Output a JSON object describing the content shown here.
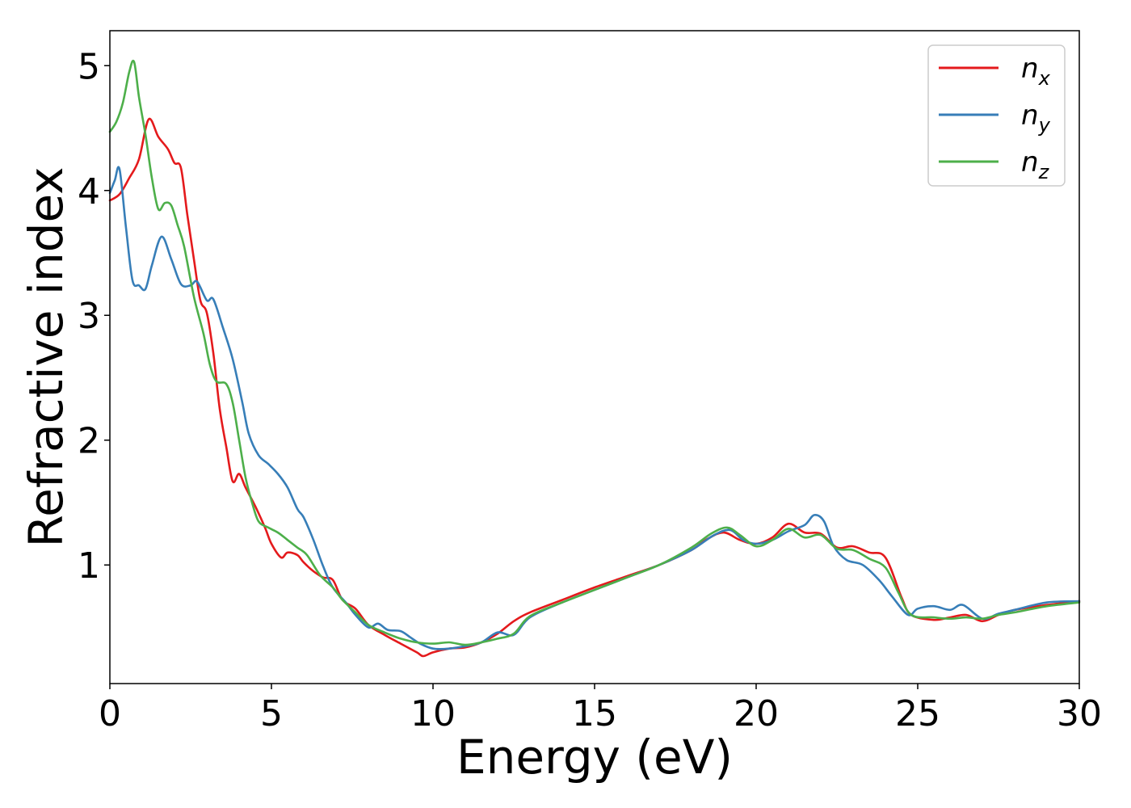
{
  "chart_data": {
    "type": "line",
    "title": "",
    "xlabel": "Energy (eV)",
    "ylabel": "Refractive index",
    "xlim": [
      0,
      30
    ],
    "ylim": [
      0.05,
      5.28
    ],
    "x_ticks": [
      0,
      5,
      10,
      15,
      20,
      25,
      30
    ],
    "y_ticks": [
      1,
      2,
      3,
      4,
      5
    ],
    "x_tick_labels": [
      "0",
      "5",
      "10",
      "15",
      "20",
      "25",
      "30"
    ],
    "y_tick_labels": [
      "1",
      "2",
      "3",
      "4",
      "5"
    ],
    "grid": false,
    "legend_position": "top-right",
    "series": [
      {
        "name": "n",
        "subscript": "x",
        "color": "#e41a1c",
        "points": [
          [
            0,
            3.92
          ],
          [
            0.3,
            3.97
          ],
          [
            0.6,
            4.1
          ],
          [
            0.9,
            4.25
          ],
          [
            1.2,
            4.57
          ],
          [
            1.5,
            4.43
          ],
          [
            1.8,
            4.33
          ],
          [
            2.0,
            4.22
          ],
          [
            2.2,
            4.18
          ],
          [
            2.4,
            3.8
          ],
          [
            2.6,
            3.45
          ],
          [
            2.8,
            3.12
          ],
          [
            3.0,
            3.02
          ],
          [
            3.2,
            2.7
          ],
          [
            3.4,
            2.25
          ],
          [
            3.6,
            1.95
          ],
          [
            3.8,
            1.67
          ],
          [
            4.0,
            1.73
          ],
          [
            4.2,
            1.62
          ],
          [
            4.5,
            1.47
          ],
          [
            4.8,
            1.3
          ],
          [
            5.0,
            1.17
          ],
          [
            5.3,
            1.06
          ],
          [
            5.5,
            1.1
          ],
          [
            5.8,
            1.08
          ],
          [
            6.0,
            1.02
          ],
          [
            6.3,
            0.95
          ],
          [
            6.6,
            0.9
          ],
          [
            6.9,
            0.88
          ],
          [
            7.2,
            0.72
          ],
          [
            7.6,
            0.65
          ],
          [
            8.0,
            0.52
          ],
          [
            8.5,
            0.44
          ],
          [
            9.0,
            0.37
          ],
          [
            9.5,
            0.3
          ],
          [
            9.7,
            0.27
          ],
          [
            10.0,
            0.3
          ],
          [
            10.5,
            0.33
          ],
          [
            11.0,
            0.34
          ],
          [
            11.5,
            0.38
          ],
          [
            12.0,
            0.45
          ],
          [
            12.5,
            0.55
          ],
          [
            13.0,
            0.62
          ],
          [
            14.0,
            0.72
          ],
          [
            15.0,
            0.82
          ],
          [
            16.0,
            0.91
          ],
          [
            17.0,
            1.0
          ],
          [
            18.0,
            1.12
          ],
          [
            18.5,
            1.21
          ],
          [
            19.0,
            1.26
          ],
          [
            19.5,
            1.2
          ],
          [
            20.0,
            1.17
          ],
          [
            20.5,
            1.22
          ],
          [
            21.0,
            1.33
          ],
          [
            21.5,
            1.26
          ],
          [
            22.0,
            1.25
          ],
          [
            22.5,
            1.14
          ],
          [
            23.0,
            1.15
          ],
          [
            23.5,
            1.1
          ],
          [
            24.0,
            1.06
          ],
          [
            24.5,
            0.74
          ],
          [
            24.8,
            0.6
          ],
          [
            25.5,
            0.56
          ],
          [
            26.0,
            0.58
          ],
          [
            26.5,
            0.6
          ],
          [
            27.0,
            0.55
          ],
          [
            27.5,
            0.6
          ],
          [
            28.0,
            0.64
          ],
          [
            29.0,
            0.68
          ],
          [
            30.0,
            0.71
          ]
        ]
      },
      {
        "name": "n",
        "subscript": "y",
        "color": "#377eb8",
        "points": [
          [
            0,
            3.98
          ],
          [
            0.15,
            4.08
          ],
          [
            0.3,
            4.17
          ],
          [
            0.5,
            3.7
          ],
          [
            0.7,
            3.28
          ],
          [
            0.9,
            3.24
          ],
          [
            1.1,
            3.21
          ],
          [
            1.3,
            3.4
          ],
          [
            1.6,
            3.63
          ],
          [
            1.9,
            3.45
          ],
          [
            2.2,
            3.25
          ],
          [
            2.5,
            3.24
          ],
          [
            2.7,
            3.27
          ],
          [
            3.0,
            3.12
          ],
          [
            3.2,
            3.13
          ],
          [
            3.5,
            2.9
          ],
          [
            3.8,
            2.65
          ],
          [
            4.1,
            2.3
          ],
          [
            4.3,
            2.05
          ],
          [
            4.6,
            1.88
          ],
          [
            4.9,
            1.81
          ],
          [
            5.2,
            1.73
          ],
          [
            5.5,
            1.62
          ],
          [
            5.8,
            1.45
          ],
          [
            6.0,
            1.38
          ],
          [
            6.3,
            1.2
          ],
          [
            6.6,
            0.99
          ],
          [
            6.9,
            0.82
          ],
          [
            7.3,
            0.7
          ],
          [
            7.6,
            0.6
          ],
          [
            8.0,
            0.5
          ],
          [
            8.3,
            0.53
          ],
          [
            8.6,
            0.48
          ],
          [
            9.0,
            0.47
          ],
          [
            9.3,
            0.42
          ],
          [
            9.6,
            0.37
          ],
          [
            10.0,
            0.33
          ],
          [
            10.5,
            0.33
          ],
          [
            11.0,
            0.35
          ],
          [
            11.5,
            0.38
          ],
          [
            12.0,
            0.46
          ],
          [
            12.5,
            0.44
          ],
          [
            13.0,
            0.58
          ],
          [
            14.0,
            0.7
          ],
          [
            15.0,
            0.8
          ],
          [
            16.0,
            0.9
          ],
          [
            17.0,
            1.0
          ],
          [
            18.0,
            1.12
          ],
          [
            18.7,
            1.24
          ],
          [
            19.2,
            1.28
          ],
          [
            19.6,
            1.2
          ],
          [
            20.0,
            1.17
          ],
          [
            20.5,
            1.2
          ],
          [
            21.0,
            1.27
          ],
          [
            21.5,
            1.32
          ],
          [
            21.8,
            1.4
          ],
          [
            22.1,
            1.35
          ],
          [
            22.4,
            1.15
          ],
          [
            22.8,
            1.04
          ],
          [
            23.3,
            1.0
          ],
          [
            23.8,
            0.88
          ],
          [
            24.2,
            0.75
          ],
          [
            24.7,
            0.6
          ],
          [
            25.0,
            0.65
          ],
          [
            25.5,
            0.67
          ],
          [
            26.0,
            0.64
          ],
          [
            26.4,
            0.68
          ],
          [
            27.0,
            0.57
          ],
          [
            27.5,
            0.61
          ],
          [
            28.0,
            0.64
          ],
          [
            29.0,
            0.7
          ],
          [
            30.0,
            0.71
          ]
        ]
      },
      {
        "name": "n",
        "subscript": "z",
        "color": "#4daf4a",
        "points": [
          [
            0,
            4.47
          ],
          [
            0.2,
            4.55
          ],
          [
            0.4,
            4.7
          ],
          [
            0.6,
            4.95
          ],
          [
            0.75,
            5.03
          ],
          [
            0.9,
            4.75
          ],
          [
            1.1,
            4.45
          ],
          [
            1.3,
            4.1
          ],
          [
            1.5,
            3.85
          ],
          [
            1.7,
            3.9
          ],
          [
            1.9,
            3.88
          ],
          [
            2.1,
            3.72
          ],
          [
            2.3,
            3.55
          ],
          [
            2.6,
            3.15
          ],
          [
            2.9,
            2.85
          ],
          [
            3.1,
            2.6
          ],
          [
            3.3,
            2.47
          ],
          [
            3.6,
            2.45
          ],
          [
            3.8,
            2.3
          ],
          [
            4.0,
            2.0
          ],
          [
            4.2,
            1.7
          ],
          [
            4.4,
            1.5
          ],
          [
            4.6,
            1.35
          ],
          [
            4.9,
            1.3
          ],
          [
            5.2,
            1.26
          ],
          [
            5.5,
            1.2
          ],
          [
            5.8,
            1.14
          ],
          [
            6.1,
            1.08
          ],
          [
            6.5,
            0.92
          ],
          [
            6.9,
            0.82
          ],
          [
            7.2,
            0.72
          ],
          [
            7.6,
            0.62
          ],
          [
            8.0,
            0.52
          ],
          [
            8.5,
            0.46
          ],
          [
            9.0,
            0.41
          ],
          [
            9.5,
            0.38
          ],
          [
            10.0,
            0.37
          ],
          [
            10.5,
            0.38
          ],
          [
            11.0,
            0.36
          ],
          [
            11.5,
            0.38
          ],
          [
            12.0,
            0.41
          ],
          [
            12.5,
            0.45
          ],
          [
            13.0,
            0.59
          ],
          [
            14.0,
            0.7
          ],
          [
            15.0,
            0.8
          ],
          [
            16.0,
            0.9
          ],
          [
            17.0,
            1.0
          ],
          [
            18.0,
            1.14
          ],
          [
            18.6,
            1.25
          ],
          [
            19.1,
            1.3
          ],
          [
            19.5,
            1.24
          ],
          [
            20.0,
            1.15
          ],
          [
            20.5,
            1.2
          ],
          [
            21.0,
            1.29
          ],
          [
            21.5,
            1.22
          ],
          [
            22.0,
            1.24
          ],
          [
            22.5,
            1.13
          ],
          [
            23.0,
            1.12
          ],
          [
            23.5,
            1.05
          ],
          [
            24.0,
            0.98
          ],
          [
            24.4,
            0.78
          ],
          [
            24.8,
            0.6
          ],
          [
            25.5,
            0.58
          ],
          [
            26.0,
            0.57
          ],
          [
            26.5,
            0.58
          ],
          [
            27.0,
            0.57
          ],
          [
            27.5,
            0.6
          ],
          [
            28.0,
            0.62
          ],
          [
            29.0,
            0.67
          ],
          [
            30.0,
            0.7
          ]
        ]
      }
    ]
  }
}
